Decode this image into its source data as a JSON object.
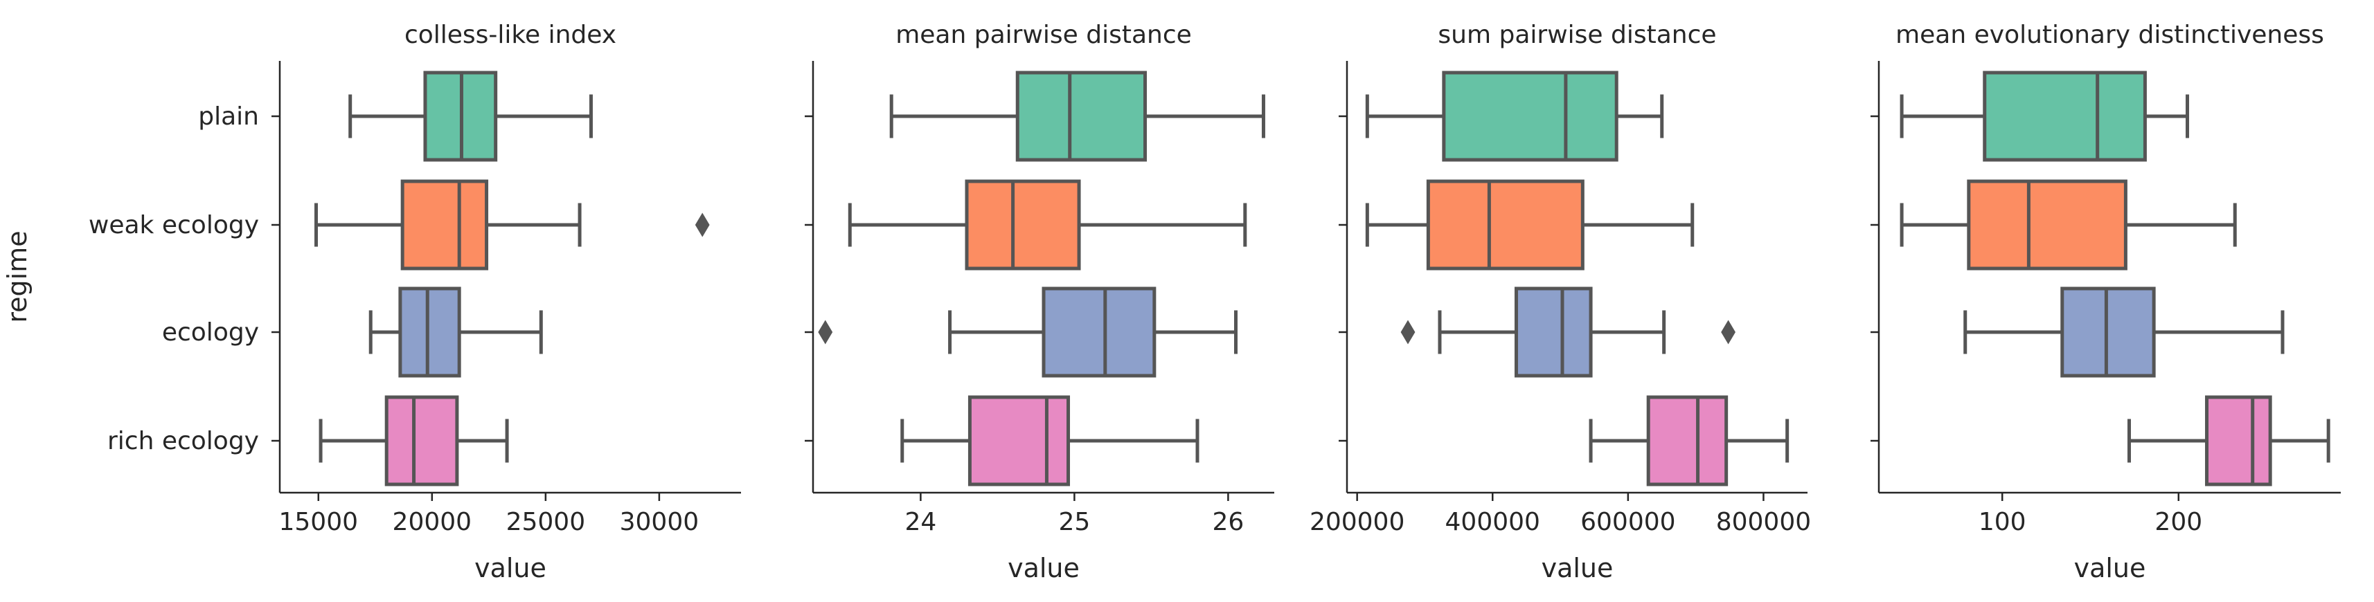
{
  "chart_data": {
    "type": "box",
    "orientation": "horizontal",
    "ylabel": "regime",
    "categories": [
      "plain",
      "weak ecology",
      "ecology",
      "rich ecology"
    ],
    "colors": [
      "#66c2a5",
      "#fc8d62",
      "#8da0cb",
      "#e78ac3"
    ],
    "panels": [
      {
        "title": "colless-like index",
        "xlabel": "value",
        "xlim": [
          13300,
          33600
        ],
        "ticks": [
          15000,
          20000,
          25000,
          30000
        ],
        "tick_labels": [
          "15000",
          "20000",
          "25000",
          "30000"
        ],
        "boxes": [
          {
            "category": "plain",
            "whisker_low": 16400,
            "q1": 19700,
            "median": 21300,
            "q3": 22800,
            "whisker_high": 27000,
            "outliers": []
          },
          {
            "category": "weak ecology",
            "whisker_low": 14900,
            "q1": 18700,
            "median": 21200,
            "q3": 22400,
            "whisker_high": 26500,
            "outliers": [
              31900
            ]
          },
          {
            "category": "ecology",
            "whisker_low": 17300,
            "q1": 18600,
            "median": 19800,
            "q3": 21200,
            "whisker_high": 24800,
            "outliers": []
          },
          {
            "category": "rich ecology",
            "whisker_low": 15100,
            "q1": 18000,
            "median": 19200,
            "q3": 21100,
            "whisker_high": 23300,
            "outliers": []
          }
        ]
      },
      {
        "title": "mean pairwise distance",
        "xlabel": "value",
        "xlim": [
          23.3,
          26.3
        ],
        "ticks": [
          24,
          25,
          26
        ],
        "tick_labels": [
          "24",
          "25",
          "26"
        ],
        "boxes": [
          {
            "category": "plain",
            "whisker_low": 23.81,
            "q1": 24.63,
            "median": 24.97,
            "q3": 25.46,
            "whisker_high": 26.23,
            "outliers": []
          },
          {
            "category": "weak ecology",
            "whisker_low": 23.54,
            "q1": 24.3,
            "median": 24.6,
            "q3": 25.03,
            "whisker_high": 26.11,
            "outliers": []
          },
          {
            "category": "ecology",
            "whisker_low": 24.19,
            "q1": 24.8,
            "median": 25.2,
            "q3": 25.52,
            "whisker_high": 26.05,
            "outliers": [
              23.38
            ]
          },
          {
            "category": "rich ecology",
            "whisker_low": 23.88,
            "q1": 24.32,
            "median": 24.82,
            "q3": 24.96,
            "whisker_high": 25.8,
            "outliers": []
          }
        ]
      },
      {
        "title": "sum pairwise distance",
        "xlabel": "value",
        "xlim": [
          185000,
          865000
        ],
        "ticks": [
          200000,
          400000,
          600000,
          800000
        ],
        "tick_labels": [
          "200000",
          "400000",
          "600000",
          "800000"
        ],
        "boxes": [
          {
            "category": "plain",
            "whisker_low": 215000,
            "q1": 328000,
            "median": 508000,
            "q3": 583000,
            "whisker_high": 650000,
            "outliers": []
          },
          {
            "category": "weak ecology",
            "whisker_low": 215000,
            "q1": 305000,
            "median": 395000,
            "q3": 533000,
            "whisker_high": 695000,
            "outliers": []
          },
          {
            "category": "ecology",
            "whisker_low": 322000,
            "q1": 435000,
            "median": 503000,
            "q3": 545000,
            "whisker_high": 653000,
            "outliers": [
              275000,
              748000
            ]
          },
          {
            "category": "rich ecology",
            "whisker_low": 545000,
            "q1": 630000,
            "median": 703000,
            "q3": 745000,
            "whisker_high": 835000,
            "outliers": []
          }
        ]
      },
      {
        "title": "mean evolutionary distinctiveness",
        "xlabel": "value",
        "xlim": [
          30,
          292
        ],
        "ticks": [
          100,
          200
        ],
        "tick_labels": [
          "100",
          "200"
        ],
        "boxes": [
          {
            "category": "plain",
            "whisker_low": 43,
            "q1": 90,
            "median": 154,
            "q3": 181,
            "whisker_high": 205,
            "outliers": []
          },
          {
            "category": "weak ecology",
            "whisker_low": 43,
            "q1": 81,
            "median": 115,
            "q3": 170,
            "whisker_high": 232,
            "outliers": []
          },
          {
            "category": "ecology",
            "whisker_low": 79,
            "q1": 134,
            "median": 159,
            "q3": 186,
            "whisker_high": 259,
            "outliers": []
          },
          {
            "category": "rich ecology",
            "whisker_low": 172,
            "q1": 216,
            "median": 242,
            "q3": 252,
            "whisker_high": 285,
            "outliers": []
          }
        ]
      }
    ]
  }
}
